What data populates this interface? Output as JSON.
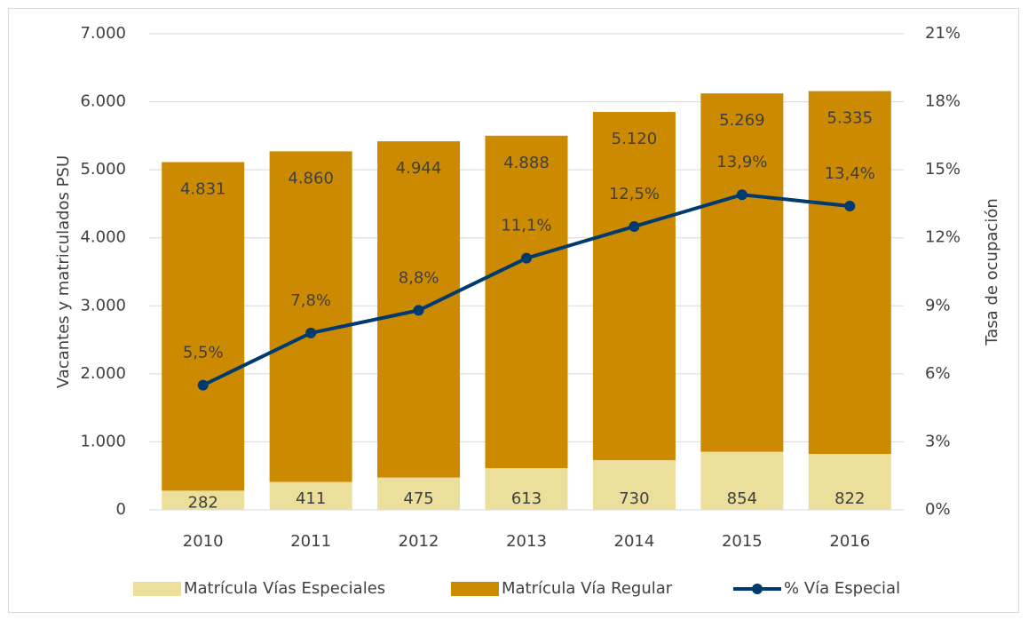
{
  "chart_data": {
    "type": "bar",
    "stacked": true,
    "categories": [
      "2010",
      "2011",
      "2012",
      "2013",
      "2014",
      "2015",
      "2016"
    ],
    "series": [
      {
        "name": "Matrícula Vías Especiales",
        "color": "#ebdf9b",
        "values": [
          282,
          411,
          475,
          613,
          730,
          854,
          822
        ]
      },
      {
        "name": "Matrícula Vía Regular",
        "color": "#cc8a00",
        "values": [
          4831,
          4860,
          4944,
          4888,
          5120,
          5269,
          5335
        ],
        "value_labels": [
          "4.831",
          "4.860",
          "4.944",
          "4.888",
          "5.120",
          "5.269",
          "5.335"
        ]
      },
      {
        "name": "% Vía Especial",
        "type": "line",
        "axis": "y2",
        "color": "#003b6f",
        "values": [
          5.5,
          7.8,
          8.8,
          11.1,
          12.5,
          13.9,
          13.4
        ],
        "value_labels": [
          "5,5%",
          "7,8%",
          "8,8%",
          "11,1%",
          "12,5%",
          "13,9%",
          "13,4%"
        ]
      }
    ],
    "ylabel": "Vacantes y matriculados PSU",
    "y2label": "Tasa de ocupación",
    "ylim": [
      0,
      7000
    ],
    "yticks": [
      0,
      {
        "value": 1000,
        "label": "1.000"
      },
      {
        "value": 2000,
        "label": "2.000"
      },
      {
        "value": 3000,
        "label": "3.000"
      },
      {
        "value": 4000,
        "label": "4.000"
      },
      {
        "value": 5000,
        "label": "5.000"
      },
      {
        "value": 6000,
        "label": "6.000"
      },
      {
        "value": 7000,
        "label": "7.000"
      }
    ],
    "y2lim": [
      0,
      21
    ],
    "y2ticks": [
      {
        "value": 0,
        "label": "0%"
      },
      {
        "value": 3,
        "label": "3%"
      },
      {
        "value": 6,
        "label": "6%"
      },
      {
        "value": 9,
        "label": "9%"
      },
      {
        "value": 12,
        "label": "12%"
      },
      {
        "value": 15,
        "label": "15%"
      },
      {
        "value": 18,
        "label": "18%"
      },
      {
        "value": 21,
        "label": "21%"
      }
    ],
    "grid": true,
    "legend": "bottom"
  }
}
